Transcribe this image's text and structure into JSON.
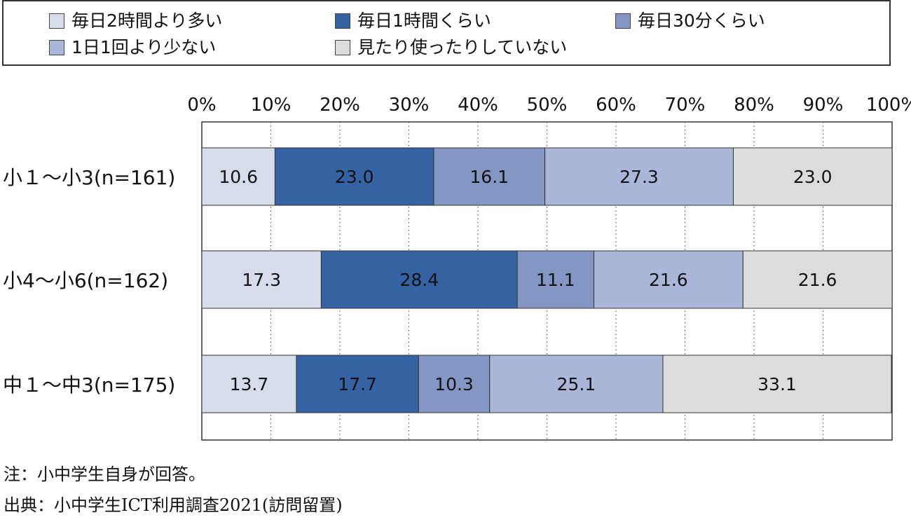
{
  "chart_data": {
    "type": "bar",
    "orientation": "horizontal",
    "stacked": true,
    "xlim": [
      0,
      100
    ],
    "x_ticks": [
      "0%",
      "10%",
      "20%",
      "30%",
      "40%",
      "50%",
      "60%",
      "70%",
      "80%",
      "90%",
      "100%"
    ],
    "grid": "vertical dotted",
    "legend_position": "top",
    "categories": [
      "小１～小3(n=161)",
      "小4～小6(n=162)",
      "中１～中3(n=175)"
    ],
    "series": [
      {
        "name": "毎日2時間より多い",
        "color": "#d6dcea",
        "values": [
          10.6,
          17.3,
          13.7
        ]
      },
      {
        "name": "毎日1時間くらい",
        "color": "#3562a3",
        "values": [
          23.0,
          28.4,
          17.7
        ]
      },
      {
        "name": "毎日30分くらい",
        "color": "#8497c4",
        "values": [
          16.1,
          11.1,
          10.3
        ]
      },
      {
        "name": "1日1回より少ない",
        "color": "#abb7d8",
        "values": [
          27.3,
          21.6,
          25.1
        ]
      },
      {
        "name": "見たり使ったりしていない",
        "color": "#dcdcdc",
        "values": [
          23.0,
          21.6,
          33.1
        ]
      }
    ],
    "value_labels": [
      [
        "10.6",
        "23.0",
        "16.1",
        "27.3",
        "23.0"
      ],
      [
        "17.3",
        "28.4",
        "11.1",
        "21.6",
        "21.6"
      ],
      [
        "13.7",
        "17.7",
        "10.3",
        "25.1",
        "33.1"
      ]
    ]
  },
  "notes": {
    "note": "注：小中学生自身が回答。",
    "source": "出典：小中学生ICT利用調査2021(訪問留置)"
  }
}
